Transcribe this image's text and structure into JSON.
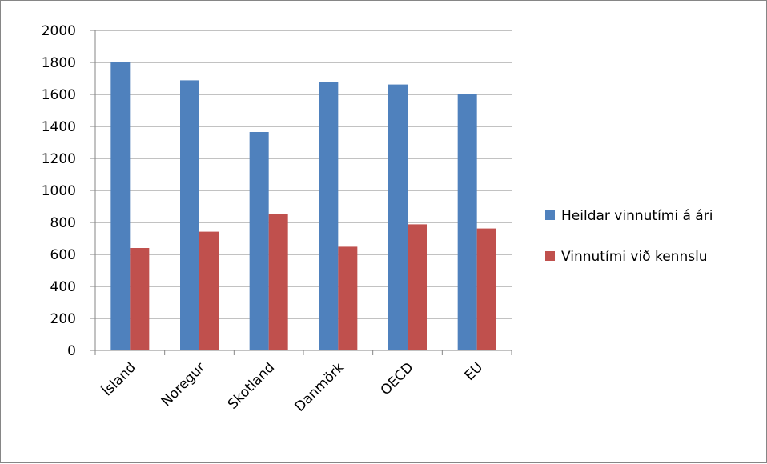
{
  "chart_data": {
    "type": "bar",
    "categories": [
      "Ísland",
      "Noregur",
      "Skotland",
      "Danmörk",
      "OECD",
      "EU"
    ],
    "series": [
      {
        "name": "Heildar vinnutími á ári",
        "color": "#4F81BD",
        "values": [
          1800,
          1688,
          1365,
          1680,
          1662,
          1600
        ]
      },
      {
        "name": "Vinnutími við kennslu",
        "color": "#C0504D",
        "values": [
          640,
          742,
          852,
          648,
          788,
          762
        ]
      }
    ],
    "title": "",
    "xlabel": "",
    "ylabel": "",
    "ylim": [
      0,
      2000
    ],
    "yticks": [
      "0",
      "200",
      "400",
      "600",
      "800",
      "1000",
      "1200",
      "1400",
      "1600",
      "1800",
      "2000"
    ],
    "grid": true,
    "legend_position": "right"
  }
}
